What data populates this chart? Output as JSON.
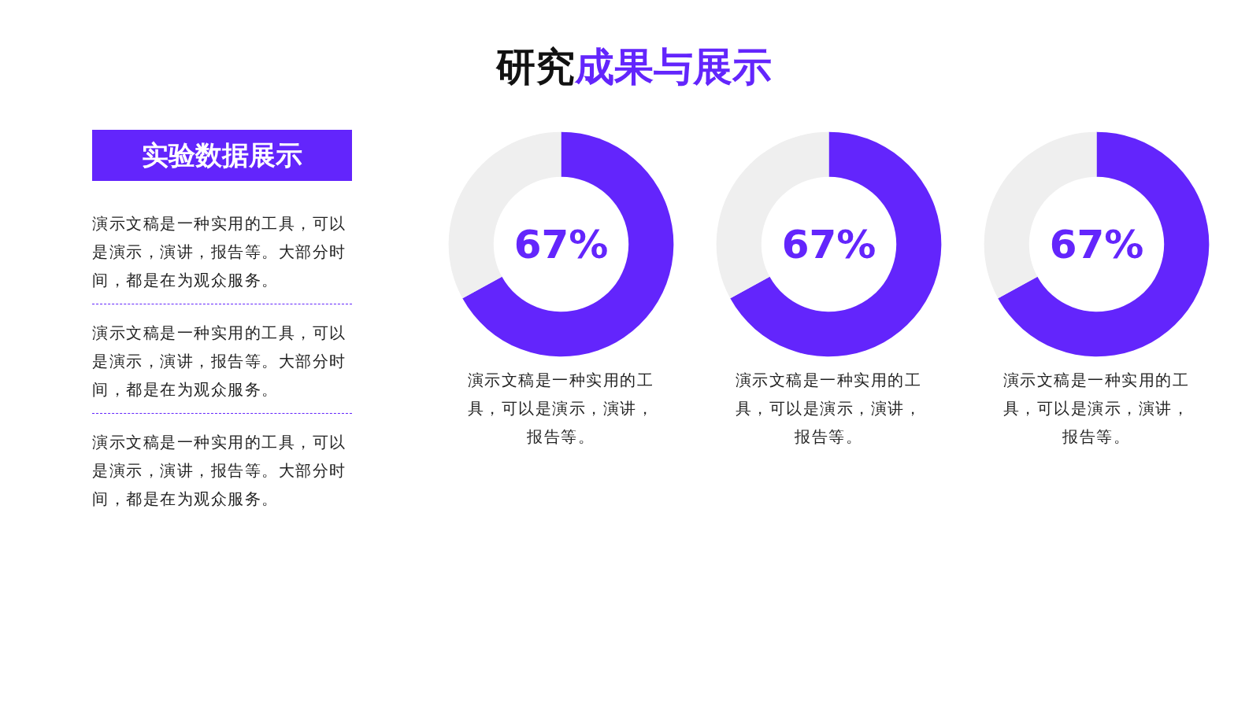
{
  "chart_data": [
    {
      "type": "other",
      "title": "研究成果与展示",
      "subtitle": "实验数据展示",
      "annotations": [
        "演示文稿是一种实用的工具，可以是演示，演讲，报告等。大部分时间，都是在为观众服务。",
        "演示文稿是一种实用的工具，可以是演示，演讲，报告等。大部分时间，都是在为观众服务。",
        "演示文稿是一种实用的工具，可以是演示，演讲，报告等。大部分时间，都是在为观众服务。"
      ]
    },
    {
      "type": "donut",
      "categories": [
        null,
        null
      ],
      "values": [
        67,
        33
      ],
      "colors": [
        "#6325fc",
        "#efefef"
      ],
      "value_labels": [
        "67%",
        null
      ],
      "annotations": [
        "演示文稿是一种实用的工具，可以是演示，演讲，报告等。"
      ]
    },
    {
      "type": "donut",
      "categories": [
        null,
        null
      ],
      "values": [
        67,
        33
      ],
      "colors": [
        "#6325fc",
        "#efefef"
      ],
      "value_labels": [
        "67%",
        null
      ],
      "annotations": [
        "演示文稿是一种实用的工具，可以是演示，演讲，报告等。"
      ]
    },
    {
      "type": "donut",
      "categories": [
        null,
        null
      ],
      "values": [
        67,
        33
      ],
      "colors": [
        "#6325fc",
        "#efefef"
      ],
      "value_labels": [
        "67%",
        null
      ],
      "annotations": [
        "演示文稿是一种实用的工具，可以是演示，演讲，报告等。"
      ]
    }
  ]
}
